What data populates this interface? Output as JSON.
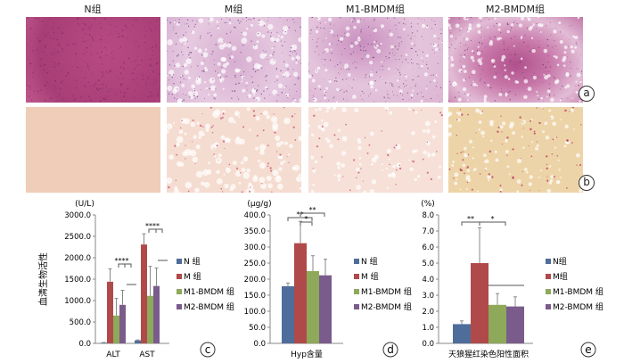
{
  "columns": [
    "N组",
    "M组",
    "M1-BMDM组",
    "M2-BMDM组"
  ],
  "row_labels": [
    "a",
    "b"
  ],
  "colors": {
    "N": "#4f6d9a",
    "M": "#b04a4a",
    "M1": "#8fa95a",
    "M2": "#7a5c8c",
    "he_stain": "#b8477e",
    "sirius_bg": "#f0cdb8",
    "sirius_fiber": "#c2416a"
  },
  "chart_data": [
    {
      "type": "bar",
      "panel": "c",
      "unit": "(U/L)",
      "ylabel": "血清生物活性",
      "ylim": [
        0,
        3000
      ],
      "yticks": [
        "0.0",
        "500.0",
        "1000.0",
        "1500.0",
        "2000.0",
        "2500.0",
        "3000.0"
      ],
      "categories": [
        "ALT",
        "AST"
      ],
      "series": [
        {
          "name": "N 组",
          "values": [
            15,
            70
          ],
          "errors": [
            5,
            10
          ]
        },
        {
          "name": "M 组",
          "values": [
            1440,
            2310
          ],
          "errors": [
            300,
            250
          ]
        },
        {
          "name": "M1-BMDM 组",
          "values": [
            650,
            1110
          ],
          "errors": [
            400,
            690
          ]
        },
        {
          "name": "M2-BMDM 组",
          "values": [
            900,
            1340
          ],
          "errors": [
            340,
            420
          ]
        }
      ],
      "annotations": [
        "****",
        "****"
      ]
    },
    {
      "type": "bar",
      "panel": "d",
      "unit": "(μg/g)",
      "ylabel": "",
      "ylim": [
        0,
        400
      ],
      "yticks": [
        "0.0",
        "50.0",
        "100.0",
        "150.0",
        "200.0",
        "250.0",
        "300.0",
        "350.0",
        "400.0"
      ],
      "categories": [
        "Hyp含量"
      ],
      "series": [
        {
          "name": "N 组",
          "values": [
            178
          ],
          "errors": [
            10
          ]
        },
        {
          "name": "M 组",
          "values": [
            312
          ],
          "errors": [
            68
          ]
        },
        {
          "name": "M1-BMDM 组",
          "values": [
            225
          ],
          "errors": [
            48
          ]
        },
        {
          "name": "M2-BMDM 组",
          "values": [
            212
          ],
          "errors": [
            50
          ]
        }
      ],
      "annotations": [
        "**",
        "*",
        "**"
      ]
    },
    {
      "type": "bar",
      "panel": "e",
      "unit": "(%)",
      "ylabel": "",
      "ylim": [
        0,
        8
      ],
      "yticks": [
        "0.0",
        "1.0",
        "2.0",
        "3.0",
        "4.0",
        "5.0",
        "6.0",
        "7.0",
        "8.0"
      ],
      "categories": [
        "天狼猩红染色阳性面积"
      ],
      "series": [
        {
          "name": "N组",
          "values": [
            1.2
          ],
          "errors": [
            0.2
          ]
        },
        {
          "name": "M组",
          "values": [
            5.0
          ],
          "errors": [
            2.2
          ]
        },
        {
          "name": "M1-BMDM 组",
          "values": [
            2.4
          ],
          "errors": [
            0.7
          ]
        },
        {
          "name": "M2-BMDM 组",
          "values": [
            2.3
          ],
          "errors": [
            0.6
          ]
        }
      ],
      "annotations": [
        "**",
        "*"
      ]
    }
  ]
}
